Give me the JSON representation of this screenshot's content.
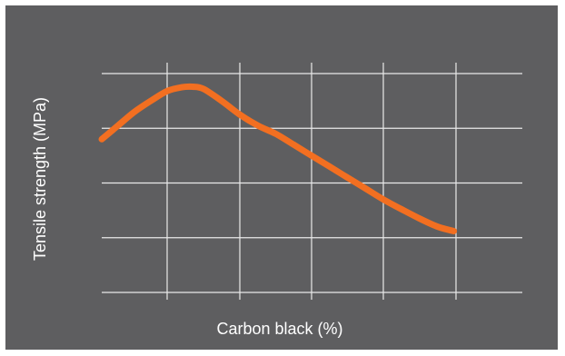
{
  "chart_data": {
    "type": "line",
    "title": "",
    "xlabel": "Carbon black (%)",
    "ylabel": "Tensile strength (MPa)",
    "grid": true,
    "xlim": [
      0,
      6
    ],
    "ylim": [
      0,
      4
    ],
    "series": [
      {
        "values": [
          {
            "x": 0.0,
            "y": 2.8
          },
          {
            "x": 0.25,
            "y": 3.05
          },
          {
            "x": 0.5,
            "y": 3.3
          },
          {
            "x": 0.75,
            "y": 3.5
          },
          {
            "x": 1.0,
            "y": 3.68
          },
          {
            "x": 1.2,
            "y": 3.75
          },
          {
            "x": 1.35,
            "y": 3.76
          },
          {
            "x": 1.5,
            "y": 3.72
          },
          {
            "x": 1.75,
            "y": 3.5
          },
          {
            "x": 2.0,
            "y": 3.25
          },
          {
            "x": 2.25,
            "y": 3.05
          },
          {
            "x": 2.5,
            "y": 2.9
          },
          {
            "x": 2.75,
            "y": 2.7
          },
          {
            "x": 3.0,
            "y": 2.5
          },
          {
            "x": 3.25,
            "y": 2.3
          },
          {
            "x": 3.5,
            "y": 2.1
          },
          {
            "x": 3.75,
            "y": 1.9
          },
          {
            "x": 4.0,
            "y": 1.7
          },
          {
            "x": 4.25,
            "y": 1.52
          },
          {
            "x": 4.5,
            "y": 1.35
          },
          {
            "x": 4.75,
            "y": 1.2
          },
          {
            "x": 4.97,
            "y": 1.12
          }
        ]
      }
    ]
  },
  "colors": {
    "background": "#5e5e60",
    "grid": "#e9e9e9",
    "line": "#f26f21",
    "text": "#ffffff"
  }
}
